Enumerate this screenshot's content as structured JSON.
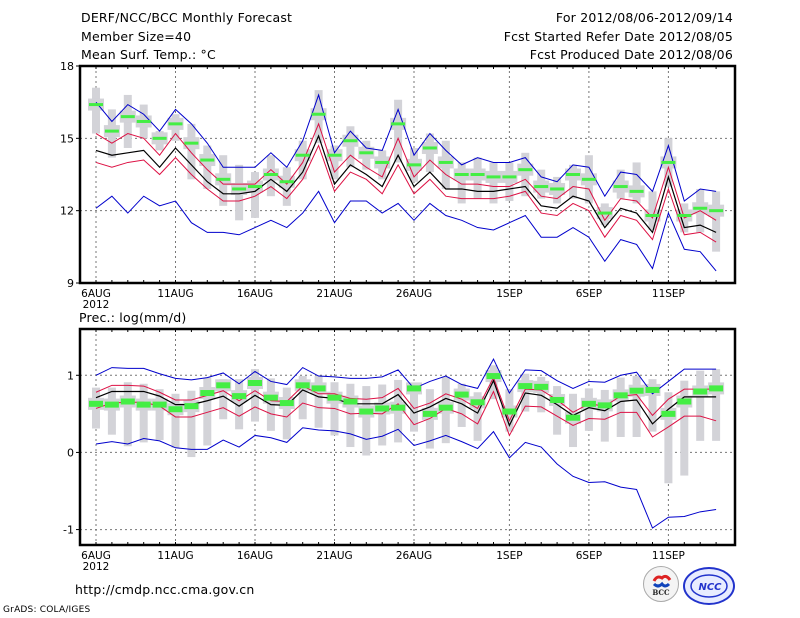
{
  "header": {
    "title": "DERF/NCC/BCC Monthly Forecast",
    "member_size": "Member Size=40",
    "variable": "Mean Surf. Temp.: °C",
    "period": "For 2012/08/06-2012/09/14",
    "started_refer_date": "Fcst Started Refer Date 2012/08/05",
    "produced_date": "Fcst Produced Date 2012/08/06"
  },
  "footer": {
    "url": "http://cmdp.ncc.cma.gov.cn",
    "credit": "GrADS: COLA/IGES",
    "logos": [
      "BCC",
      "NCC"
    ]
  },
  "colors": {
    "ens_range": "#0000cc",
    "ens_sd": "#dd1144",
    "ens_mean": "#000000",
    "box": "#d3d3d8",
    "marker": "#44ee44"
  },
  "chart_data": [
    {
      "type": "line",
      "title": "Mean Surf. Temp.: °C",
      "xlabel": "",
      "ylabel": "",
      "ylim": [
        9,
        18
      ],
      "yticks": [
        "9",
        "12",
        "15",
        "18"
      ],
      "xtick_labels": [
        "6AUG",
        "11AUG",
        "16AUG",
        "21AUG",
        "26AUG",
        "1SEP",
        "6SEP",
        "11SEP"
      ],
      "xtick_days": [
        0,
        5,
        10,
        15,
        20,
        26,
        31,
        36
      ],
      "year_label": "2012",
      "grid": true,
      "n_days": 40,
      "series": [
        {
          "name": "ens_max",
          "values": [
            16.5,
            15.7,
            16.4,
            16.0,
            15.3,
            16.2,
            15.6,
            14.8,
            13.8,
            13.8,
            13.8,
            14.4,
            13.8,
            14.9,
            16.8,
            14.4,
            15.3,
            14.6,
            14.5,
            16.2,
            14.3,
            15.2,
            14.5,
            13.9,
            14.2,
            14.0,
            14.0,
            14.2,
            13.4,
            13.2,
            13.9,
            13.8,
            12.6,
            13.6,
            13.5,
            12.8,
            14.7,
            12.4,
            12.9,
            12.8
          ]
        },
        {
          "name": "sd_upper",
          "values": [
            15.2,
            14.8,
            15.2,
            15.0,
            14.3,
            15.2,
            14.4,
            13.7,
            13.1,
            13.1,
            13.1,
            13.7,
            13.1,
            14.0,
            15.6,
            13.6,
            14.3,
            13.8,
            13.4,
            15.0,
            13.4,
            14.1,
            13.5,
            13.1,
            13.1,
            13.0,
            13.0,
            13.3,
            12.6,
            12.5,
            13.0,
            12.9,
            11.6,
            12.5,
            12.4,
            11.7,
            13.8,
            11.7,
            12.0,
            11.6
          ]
        },
        {
          "name": "ens_mean",
          "values": [
            14.5,
            14.3,
            14.4,
            14.5,
            13.8,
            14.6,
            13.9,
            13.2,
            12.7,
            12.7,
            12.8,
            13.3,
            12.8,
            13.6,
            15.1,
            13.1,
            13.9,
            13.5,
            13.0,
            14.3,
            13.0,
            13.6,
            12.9,
            12.9,
            12.8,
            12.8,
            12.9,
            13.0,
            12.2,
            12.1,
            12.6,
            12.4,
            11.3,
            12.1,
            11.9,
            11.1,
            13.4,
            11.3,
            11.4,
            11.1
          ]
        },
        {
          "name": "sd_lower",
          "values": [
            14.0,
            13.8,
            14.0,
            14.1,
            13.5,
            14.2,
            13.5,
            12.9,
            12.4,
            12.4,
            12.6,
            13.0,
            12.5,
            13.3,
            14.7,
            12.8,
            13.6,
            13.3,
            12.7,
            13.9,
            12.7,
            13.3,
            12.6,
            12.5,
            12.5,
            12.5,
            12.6,
            12.8,
            11.9,
            11.8,
            12.3,
            12.0,
            10.9,
            11.8,
            11.6,
            10.8,
            12.9,
            11.0,
            11.1,
            10.7
          ]
        },
        {
          "name": "ens_min",
          "values": [
            12.1,
            12.6,
            11.9,
            12.6,
            12.2,
            12.4,
            11.5,
            11.1,
            11.1,
            11.0,
            11.3,
            11.6,
            11.3,
            11.9,
            12.8,
            11.5,
            12.4,
            12.4,
            11.9,
            12.3,
            11.6,
            12.3,
            11.8,
            11.6,
            11.3,
            11.2,
            11.5,
            11.8,
            10.9,
            10.9,
            11.3,
            10.9,
            9.9,
            10.8,
            10.6,
            9.6,
            11.9,
            10.4,
            10.3,
            9.5
          ]
        },
        {
          "name": "green_marker",
          "values": [
            16.4,
            15.3,
            15.9,
            15.7,
            15.0,
            15.6,
            14.8,
            14.1,
            13.3,
            12.9,
            13.0,
            13.5,
            13.2,
            14.3,
            16.0,
            14.3,
            14.9,
            14.4,
            14.0,
            15.6,
            13.9,
            14.6,
            14.0,
            13.5,
            13.5,
            13.4,
            13.4,
            13.7,
            13.0,
            12.9,
            13.5,
            13.3,
            11.9,
            13.0,
            12.8,
            11.8,
            14.0,
            11.8,
            12.1,
            12.0
          ]
        },
        {
          "name": "box_low",
          "values": [
            15.2,
            14.2,
            14.6,
            15.0,
            14.5,
            14.9,
            13.3,
            12.9,
            12.2,
            11.6,
            11.7,
            12.6,
            12.2,
            13.3,
            14.8,
            13.3,
            13.8,
            13.7,
            13.3,
            14.0,
            13.2,
            13.6,
            12.9,
            12.3,
            12.5,
            12.3,
            12.4,
            12.6,
            12.5,
            12.3,
            12.5,
            12.3,
            11.4,
            12.5,
            12.3,
            11.2,
            13.0,
            11.1,
            11.1,
            10.3
          ]
        },
        {
          "name": "box_high",
          "values": [
            17.1,
            16.2,
            16.8,
            16.4,
            15.3,
            16.0,
            15.6,
            14.7,
            14.3,
            13.9,
            13.6,
            14.3,
            13.8,
            14.9,
            17.0,
            14.7,
            15.5,
            14.9,
            14.5,
            16.6,
            14.6,
            15.2,
            14.9,
            14.0,
            14.2,
            14.0,
            14.0,
            14.4,
            13.7,
            13.4,
            13.9,
            14.3,
            12.3,
            13.7,
            14.0,
            12.8,
            15.0,
            12.3,
            12.9,
            12.8
          ]
        }
      ]
    },
    {
      "type": "line",
      "title": "Prec.: log(mm/d)",
      "xlabel": "",
      "ylabel": "",
      "ylim": [
        -1.2,
        1.6
      ],
      "yticks": [
        "-1",
        "0",
        "1"
      ],
      "xtick_labels": [
        "6AUG",
        "11AUG",
        "16AUG",
        "21AUG",
        "26AUG",
        "1SEP",
        "6SEP",
        "11SEP"
      ],
      "xtick_days": [
        0,
        5,
        10,
        15,
        20,
        26,
        31,
        36
      ],
      "year_label": "2012",
      "grid": true,
      "n_days": 40,
      "series": [
        {
          "name": "ens_max",
          "values": [
            1.0,
            1.1,
            1.09,
            1.09,
            1.02,
            0.96,
            0.94,
            0.97,
            1.03,
            0.89,
            1.05,
            0.92,
            0.88,
            1.1,
            0.99,
            0.98,
            0.96,
            0.96,
            0.98,
            1.07,
            0.83,
            0.92,
            0.99,
            0.88,
            0.83,
            1.21,
            0.77,
            1.07,
            1.06,
            0.93,
            0.83,
            0.92,
            0.91,
            1.0,
            1.04,
            0.76,
            0.92,
            1.08,
            1.08,
            1.08
          ]
        },
        {
          "name": "sd_upper",
          "values": [
            0.78,
            0.87,
            0.87,
            0.86,
            0.78,
            0.68,
            0.68,
            0.74,
            0.8,
            0.67,
            0.8,
            0.67,
            0.66,
            0.86,
            0.76,
            0.76,
            0.7,
            0.69,
            0.71,
            0.83,
            0.57,
            0.64,
            0.76,
            0.69,
            0.57,
            0.97,
            0.41,
            0.82,
            0.81,
            0.68,
            0.52,
            0.63,
            0.6,
            0.73,
            0.75,
            0.48,
            0.69,
            0.82,
            0.82,
            0.82
          ]
        },
        {
          "name": "ens_mean",
          "values": [
            0.71,
            0.79,
            0.79,
            0.79,
            0.73,
            0.62,
            0.62,
            0.67,
            0.73,
            0.6,
            0.74,
            0.62,
            0.61,
            0.81,
            0.72,
            0.7,
            0.63,
            0.63,
            0.63,
            0.75,
            0.51,
            0.59,
            0.7,
            0.63,
            0.51,
            0.93,
            0.35,
            0.77,
            0.74,
            0.62,
            0.48,
            0.58,
            0.54,
            0.66,
            0.68,
            0.37,
            0.56,
            0.72,
            0.72,
            0.72
          ]
        },
        {
          "name": "sd_lower",
          "values": [
            0.57,
            0.64,
            0.65,
            0.65,
            0.6,
            0.46,
            0.46,
            0.52,
            0.58,
            0.47,
            0.59,
            0.5,
            0.46,
            0.64,
            0.58,
            0.57,
            0.5,
            0.51,
            0.5,
            0.63,
            0.36,
            0.44,
            0.57,
            0.5,
            0.37,
            0.79,
            0.22,
            0.6,
            0.59,
            0.47,
            0.35,
            0.44,
            0.43,
            0.52,
            0.52,
            0.2,
            0.33,
            0.47,
            0.47,
            0.41
          ]
        },
        {
          "name": "ens_min",
          "values": [
            0.11,
            0.14,
            0.11,
            0.18,
            0.15,
            0.06,
            0.04,
            0.04,
            0.16,
            0.07,
            0.22,
            0.19,
            0.13,
            0.32,
            0.29,
            0.28,
            0.24,
            0.17,
            0.21,
            0.3,
            0.09,
            0.15,
            0.22,
            0.14,
            0.05,
            0.27,
            -0.07,
            0.13,
            0.07,
            -0.15,
            -0.31,
            -0.39,
            -0.38,
            -0.45,
            -0.48,
            -0.98,
            -0.84,
            -0.83,
            -0.77,
            -0.74
          ]
        },
        {
          "name": "green_marker",
          "values": [
            0.63,
            0.62,
            0.66,
            0.62,
            0.62,
            0.56,
            0.6,
            0.77,
            0.87,
            0.73,
            0.9,
            0.71,
            0.64,
            0.87,
            0.83,
            0.71,
            0.66,
            0.53,
            0.57,
            0.58,
            0.83,
            0.5,
            0.58,
            0.75,
            0.65,
            0.99,
            0.53,
            0.86,
            0.85,
            0.68,
            0.45,
            0.63,
            0.61,
            0.74,
            0.8,
            0.81,
            0.5,
            0.66,
            0.79,
            0.83
          ]
        },
        {
          "name": "box_low",
          "values": [
            0.31,
            0.23,
            0.08,
            0.13,
            0.16,
            0.06,
            -0.06,
            0.09,
            0.43,
            0.3,
            0.4,
            0.28,
            0.17,
            0.43,
            0.32,
            0.22,
            0.07,
            -0.04,
            0.09,
            0.13,
            0.27,
            0.05,
            0.12,
            0.33,
            0.15,
            0.69,
            0.27,
            0.53,
            0.52,
            0.23,
            0.07,
            0.28,
            0.14,
            0.2,
            0.2,
            0.27,
            -0.4,
            -0.3,
            0.15,
            0.15
          ]
        },
        {
          "name": "box_high",
          "values": [
            0.84,
            0.84,
            0.91,
            0.89,
            0.82,
            0.76,
            0.8,
            0.97,
            0.95,
            0.95,
            1.08,
            0.96,
            0.84,
            0.99,
            0.99,
            0.91,
            0.89,
            0.86,
            0.88,
            0.94,
            0.76,
            0.82,
            0.98,
            0.89,
            0.78,
            1.13,
            0.82,
            1.02,
            0.98,
            0.86,
            0.76,
            0.83,
            0.81,
            0.97,
            0.99,
            0.95,
            0.78,
            0.93,
            1.06,
            1.08
          ]
        }
      ]
    }
  ]
}
